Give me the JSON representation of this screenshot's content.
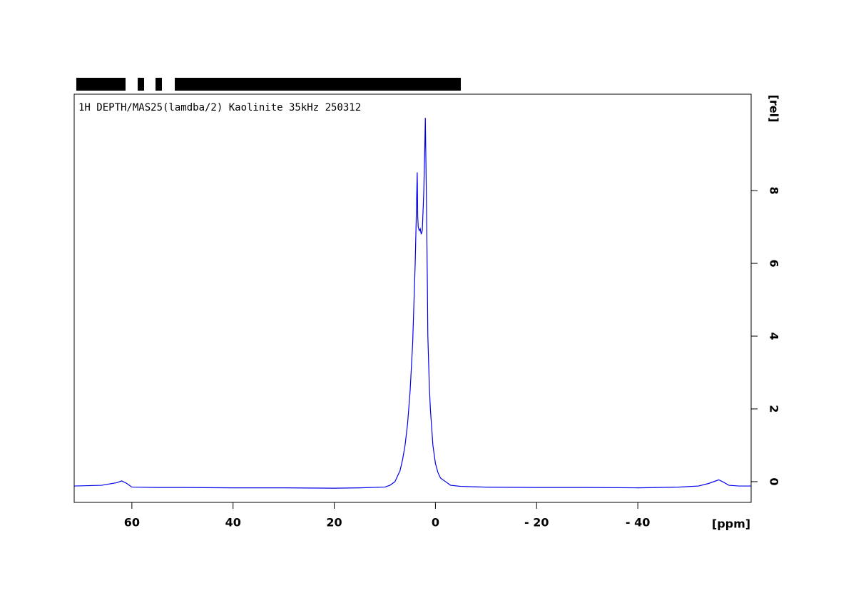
{
  "chart_data": {
    "type": "line",
    "title": "1H DEPTH/MAS25(lamdba/2) Kaolinite 35kHz 250312",
    "x_label": "[ppm]",
    "y_label": "[rel]",
    "xlim": [
      71.4,
      -62.4
    ],
    "ylim": [
      -0.57,
      10.65
    ],
    "xticks": [
      60,
      40,
      20,
      0,
      {
        "value": -20,
        "label": "- 20"
      },
      {
        "value": -40,
        "label": "- 40"
      }
    ],
    "yticks": [
      0,
      2,
      4,
      6,
      8
    ],
    "series": [
      {
        "name": "1H",
        "color": "#0000ee",
        "x": [
          71.4,
          66,
          63,
          62,
          61,
          60,
          55,
          50,
          40,
          30,
          20,
          15,
          10,
          9,
          8,
          7.5,
          7,
          6.5,
          6,
          5.5,
          5,
          4.5,
          4,
          3.8,
          3.6,
          3.5,
          3.4,
          3.2,
          3.0,
          2.8,
          2.6,
          2.4,
          2.3,
          2.1,
          2.0,
          1.9,
          1.8,
          1.6,
          1.5,
          1.2,
          1.0,
          0.7,
          0.5,
          0.2,
          0,
          -0.5,
          -1,
          -2,
          -3,
          -5,
          -10,
          -20,
          -30,
          -40,
          -48,
          -52,
          -54,
          -56,
          -57,
          -58,
          -60,
          -62.4
        ],
        "values": [
          -0.12,
          -0.1,
          -0.03,
          0.02,
          -0.05,
          -0.15,
          -0.16,
          -0.16,
          -0.17,
          -0.17,
          -0.18,
          -0.17,
          -0.15,
          -0.1,
          0.0,
          0.15,
          0.3,
          0.6,
          1.0,
          1.6,
          2.5,
          3.8,
          6.0,
          7.2,
          8.5,
          7.3,
          7.0,
          6.9,
          6.95,
          6.8,
          6.9,
          7.6,
          8.0,
          9.2,
          10.0,
          9.0,
          8.0,
          5.5,
          4.0,
          2.6,
          2.0,
          1.4,
          1.0,
          0.7,
          0.5,
          0.25,
          0.1,
          0.0,
          -0.1,
          -0.13,
          -0.15,
          -0.16,
          -0.16,
          -0.17,
          -0.15,
          -0.12,
          -0.05,
          0.05,
          -0.02,
          -0.1,
          -0.12,
          -0.12
        ]
      }
    ]
  }
}
